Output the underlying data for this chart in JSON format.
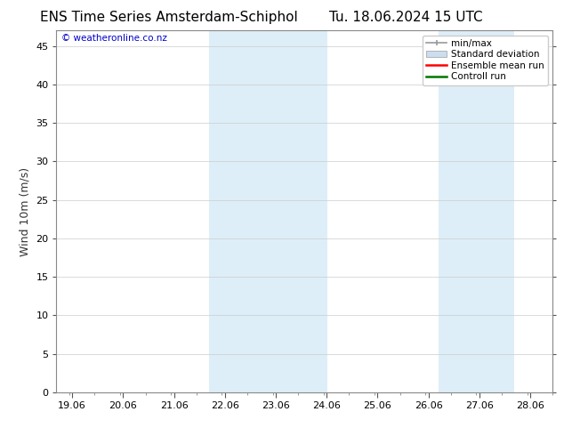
{
  "title_left": "ENS Time Series Amsterdam-Schiphol",
  "title_right": "Tu. 18.06.2024 15 UTC",
  "ylabel": "Wind 10m (m/s)",
  "watermark": "© weatheronline.co.nz",
  "bg_color": "#ffffff",
  "plot_bg_color": "#ffffff",
  "shaded_bands": [
    {
      "x_start": 21.75,
      "x_end": 22.25,
      "color": "#ddeef8"
    },
    {
      "x_start": 22.25,
      "x_end": 23.25,
      "color": "#ddeef8"
    },
    {
      "x_start": 23.25,
      "x_end": 24.08,
      "color": "#ddeef8"
    },
    {
      "x_start": 26.25,
      "x_end": 26.75,
      "color": "#ddeef8"
    },
    {
      "x_start": 26.75,
      "x_end": 27.25,
      "color": "#ddeef8"
    },
    {
      "x_start": 27.25,
      "x_end": 27.75,
      "color": "#ddeef8"
    }
  ],
  "x_ticks": [
    19.06,
    20.06,
    21.06,
    22.06,
    23.06,
    24.06,
    25.06,
    26.06,
    27.06,
    28.06
  ],
  "x_tick_labels": [
    "19.06",
    "20.06",
    "21.06",
    "22.06",
    "23.06",
    "24.06",
    "25.06",
    "26.06",
    "27.06",
    "28.06"
  ],
  "x_min": 18.75,
  "x_max": 28.5,
  "y_min": 0,
  "y_max": 47,
  "y_ticks": [
    0,
    5,
    10,
    15,
    20,
    25,
    30,
    35,
    40,
    45
  ],
  "legend_items": [
    {
      "label": "min/max",
      "color": "#999999",
      "style": "minmax"
    },
    {
      "label": "Standard deviation",
      "color": "#ccddf0",
      "style": "box"
    },
    {
      "label": "Ensemble mean run",
      "color": "#ff0000",
      "style": "line"
    },
    {
      "label": "Controll run",
      "color": "#007700",
      "style": "line"
    }
  ],
  "title_fontsize": 11,
  "tick_fontsize": 8,
  "legend_fontsize": 7.5,
  "watermark_color": "#0000cc",
  "axis_color": "#555555",
  "font_family": "DejaVu Sans"
}
